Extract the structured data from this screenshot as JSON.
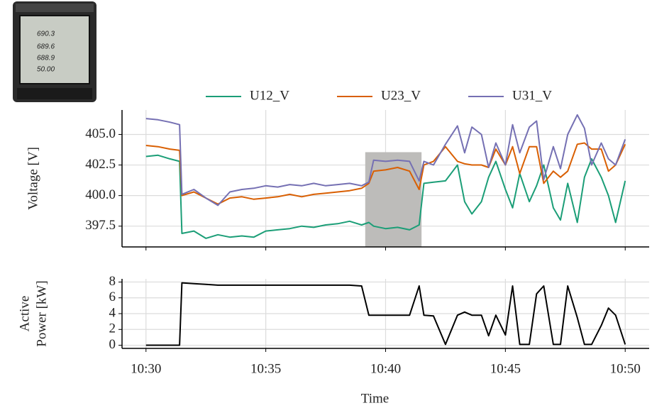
{
  "meter": {
    "readings": [
      "690.3",
      "689.6",
      "688.9",
      "50.00"
    ]
  },
  "chart_data": [
    {
      "type": "line",
      "ylabel": [
        "Voltage [V]"
      ],
      "x": [
        630,
        630.5,
        631,
        631.4,
        631.5,
        632,
        632.5,
        633,
        633.5,
        634,
        634.5,
        635,
        635.5,
        636,
        636.5,
        637,
        637.5,
        638,
        638.5,
        639,
        639.3,
        639.5,
        640,
        640.5,
        641,
        641.4,
        641.6,
        642,
        642.5,
        643,
        643.3,
        643.6,
        644,
        644.3,
        644.6,
        645,
        645.3,
        645.6,
        646,
        646.3,
        646.6,
        647,
        647.3,
        647.6,
        648,
        648.3,
        648.6,
        649,
        649.3,
        649.6,
        650
      ],
      "series": [
        {
          "name": "U12_V",
          "color": "#1b9e77",
          "values": [
            403.2,
            403.3,
            403.0,
            402.8,
            396.9,
            397.1,
            396.5,
            396.8,
            396.6,
            396.7,
            396.6,
            397.1,
            397.2,
            397.3,
            397.5,
            397.4,
            397.6,
            397.7,
            397.9,
            397.6,
            397.8,
            397.5,
            397.3,
            397.4,
            397.2,
            397.6,
            401.0,
            401.1,
            401.2,
            402.5,
            399.5,
            398.5,
            399.5,
            401.5,
            402.8,
            400.5,
            399.0,
            401.8,
            399.5,
            400.8,
            402.5,
            399.0,
            398.0,
            401.0,
            397.8,
            401.5,
            403.0,
            401.5,
            400.0,
            397.8,
            401.2
          ]
        },
        {
          "name": "U23_V",
          "color": "#d95f02",
          "values": [
            404.1,
            404.0,
            403.8,
            403.7,
            400.0,
            400.3,
            399.8,
            399.3,
            399.8,
            399.9,
            399.7,
            399.8,
            399.9,
            400.1,
            399.9,
            400.1,
            400.2,
            400.3,
            400.4,
            400.6,
            401.0,
            402.0,
            402.1,
            402.3,
            402.0,
            400.5,
            402.5,
            402.8,
            404.0,
            402.8,
            402.6,
            402.5,
            402.5,
            402.3,
            403.8,
            402.5,
            404.0,
            401.8,
            404.0,
            404.0,
            401.0,
            402.0,
            401.5,
            402.0,
            404.2,
            404.3,
            403.8,
            403.8,
            402.0,
            402.5,
            404.2
          ]
        },
        {
          "name": "U31_V",
          "color": "#7570b3",
          "values": [
            406.3,
            406.2,
            406.0,
            405.8,
            400.1,
            400.5,
            399.8,
            399.2,
            400.3,
            400.5,
            400.6,
            400.8,
            400.7,
            400.9,
            400.8,
            401.0,
            400.8,
            400.9,
            401.0,
            400.8,
            401.1,
            402.9,
            402.8,
            402.9,
            402.8,
            401.2,
            402.8,
            402.5,
            404.2,
            405.7,
            403.5,
            405.6,
            405.0,
            402.3,
            404.3,
            402.5,
            405.8,
            403.5,
            405.6,
            406.1,
            401.3,
            404.0,
            402.2,
            405.0,
            406.6,
            405.5,
            402.5,
            404.3,
            403.0,
            402.5,
            404.6
          ]
        }
      ],
      "xlim": [
        629,
        651
      ],
      "ylim": [
        395.8,
        407
      ],
      "yticks": [
        397.5,
        {
          "value": 400,
          "label": "400.0"
        },
        402.5,
        {
          "value": 405,
          "label": "405.0"
        }
      ],
      "xticks": [
        630,
        635,
        640,
        645,
        650
      ],
      "highlight": {
        "xlim": [
          639.15,
          641.5
        ],
        "ylim": [
          395.8,
          403.55
        ],
        "color": "#bdbcba"
      },
      "grid": true,
      "legend": "top"
    },
    {
      "type": "line",
      "ylabel": [
        "Active",
        "Power [kW]"
      ],
      "xlabel": "Time",
      "x": [
        630,
        630.5,
        631,
        631.4,
        631.5,
        632,
        632.5,
        633,
        633.5,
        634,
        634.5,
        635,
        635.5,
        636,
        636.5,
        637,
        637.5,
        638,
        638.5,
        639,
        639.3,
        639.5,
        640,
        640.5,
        641,
        641.4,
        641.6,
        642,
        642.5,
        643,
        643.3,
        643.6,
        644,
        644.3,
        644.6,
        645,
        645.3,
        645.6,
        646,
        646.3,
        646.6,
        647,
        647.3,
        647.6,
        648,
        648.3,
        648.6,
        649,
        649.3,
        649.6,
        650
      ],
      "series": [
        {
          "color": "#000000",
          "values": [
            0,
            0,
            0,
            0,
            7.9,
            7.8,
            7.7,
            7.6,
            7.6,
            7.6,
            7.6,
            7.6,
            7.6,
            7.6,
            7.6,
            7.6,
            7.6,
            7.6,
            7.6,
            7.5,
            3.8,
            3.8,
            3.8,
            3.8,
            3.8,
            7.5,
            3.8,
            3.7,
            0.1,
            3.8,
            4.2,
            3.8,
            3.8,
            1.2,
            3.8,
            1.3,
            7.5,
            0.1,
            0.1,
            6.5,
            7.5,
            0.1,
            0.1,
            7.5,
            3.5,
            0.1,
            0.1,
            2.5,
            4.7,
            3.8,
            0.1
          ]
        }
      ],
      "xlim": [
        629,
        651
      ],
      "ylim": [
        -0.4,
        8.4
      ],
      "yticks": [
        0,
        2,
        4,
        6,
        8
      ],
      "xticks": [
        {
          "value": 630,
          "label": "10:30"
        },
        {
          "value": 635,
          "label": "10:35"
        },
        {
          "value": 640,
          "label": "10:40"
        },
        {
          "value": 645,
          "label": "10:45"
        },
        {
          "value": 650,
          "label": "10:50"
        }
      ],
      "grid": true
    }
  ]
}
